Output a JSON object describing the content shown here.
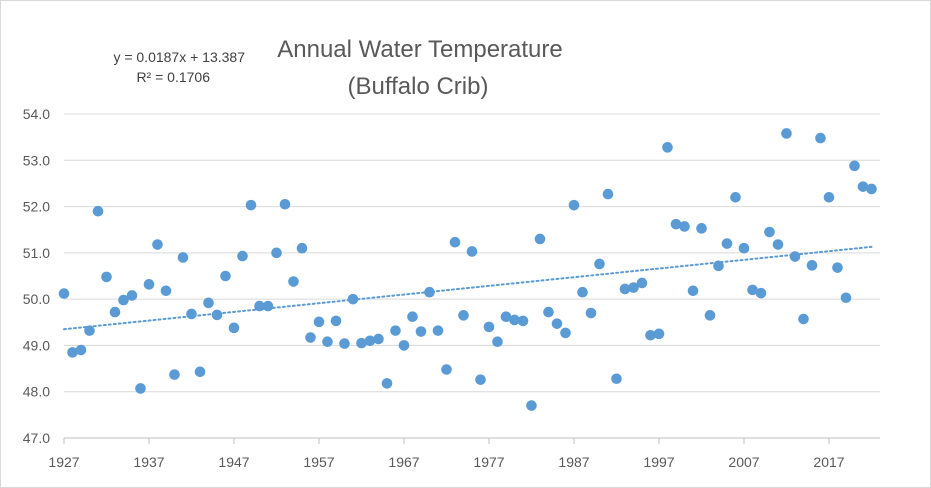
{
  "chart_data": {
    "type": "scatter",
    "title": "Annual Water Temperature",
    "subtitle": "(Buffalo Crib)",
    "trendline": {
      "type": "linear",
      "equation": "y = 0.0187x + 13.387",
      "r_squared": "R² = 0.1706",
      "start": [
        1927,
        49.35
      ],
      "end": [
        2022,
        51.13
      ],
      "color": "#5b9bd5",
      "style": "dotted"
    },
    "xlim": [
      1927,
      2023
    ],
    "ylim": [
      47.0,
      54.0
    ],
    "xticks": [
      "1927",
      "1937",
      "1947",
      "1957",
      "1967",
      "1977",
      "1987",
      "1997",
      "2007",
      "2017"
    ],
    "xtick_values": [
      1927,
      1937,
      1947,
      1957,
      1967,
      1977,
      1987,
      1997,
      2007,
      2017
    ],
    "yticks": [
      "47.0",
      "48.0",
      "49.0",
      "50.0",
      "51.0",
      "52.0",
      "53.0",
      "54.0"
    ],
    "ytick_values": [
      47,
      48,
      49,
      50,
      51,
      52,
      53,
      54
    ],
    "grid": "horizontal",
    "legend": "none",
    "marker_color": "#5b9bd5",
    "series": [
      {
        "x": [
          1927,
          1928,
          1929,
          1930,
          1931,
          1932,
          1933,
          1934,
          1935,
          1936,
          1937,
          1938,
          1939,
          1940,
          1941,
          1942,
          1943,
          1944,
          1945,
          1946,
          1947,
          1948,
          1949,
          1950,
          1951,
          1952,
          1953,
          1954,
          1955,
          1956,
          1957,
          1958,
          1959,
          1960,
          1961,
          1962,
          1963,
          1964,
          1965,
          1966,
          1967,
          1968,
          1969,
          1970,
          1971,
          1972,
          1973,
          1974,
          1975,
          1976,
          1977,
          1978,
          1979,
          1980,
          1981,
          1982,
          1983,
          1984,
          1985,
          1986,
          1987,
          1988,
          1989,
          1990,
          1991,
          1992,
          1993,
          1994,
          1995,
          1996,
          1997,
          1998,
          1999,
          2000,
          2001,
          2002,
          2003,
          2004,
          2005,
          2006,
          2007,
          2008,
          2009,
          2010,
          2011,
          2012,
          2013,
          2014,
          2015,
          2016,
          2017,
          2018,
          2019,
          2020,
          2021,
          2022
        ],
        "y": [
          50.12,
          48.85,
          48.9,
          49.32,
          51.9,
          50.48,
          49.72,
          49.98,
          50.08,
          48.07,
          50.32,
          51.18,
          50.18,
          48.37,
          50.9,
          49.68,
          48.43,
          49.92,
          49.66,
          50.5,
          49.38,
          50.93,
          52.03,
          49.85,
          49.85,
          51.0,
          52.05,
          50.38,
          51.1,
          49.17,
          49.51,
          49.08,
          49.53,
          49.04,
          50.0,
          49.05,
          49.1,
          49.14,
          48.18,
          49.32,
          49.0,
          49.62,
          49.3,
          50.15,
          49.32,
          48.48,
          51.23,
          49.65,
          51.03,
          48.26,
          49.4,
          49.08,
          49.62,
          49.55,
          49.53,
          47.7,
          51.3,
          49.72,
          49.47,
          49.27,
          52.03,
          50.15,
          49.7,
          50.76,
          52.27,
          48.28,
          50.22,
          50.25,
          50.35,
          49.22,
          49.25,
          53.28,
          51.62,
          51.57,
          50.18,
          51.53,
          49.65,
          50.72,
          51.2,
          52.2,
          51.1,
          50.2,
          50.13,
          51.45,
          51.18,
          53.58,
          50.92,
          49.57,
          50.73,
          53.48,
          52.2,
          50.68,
          50.03,
          52.88,
          52.43,
          52.38
        ]
      }
    ]
  }
}
